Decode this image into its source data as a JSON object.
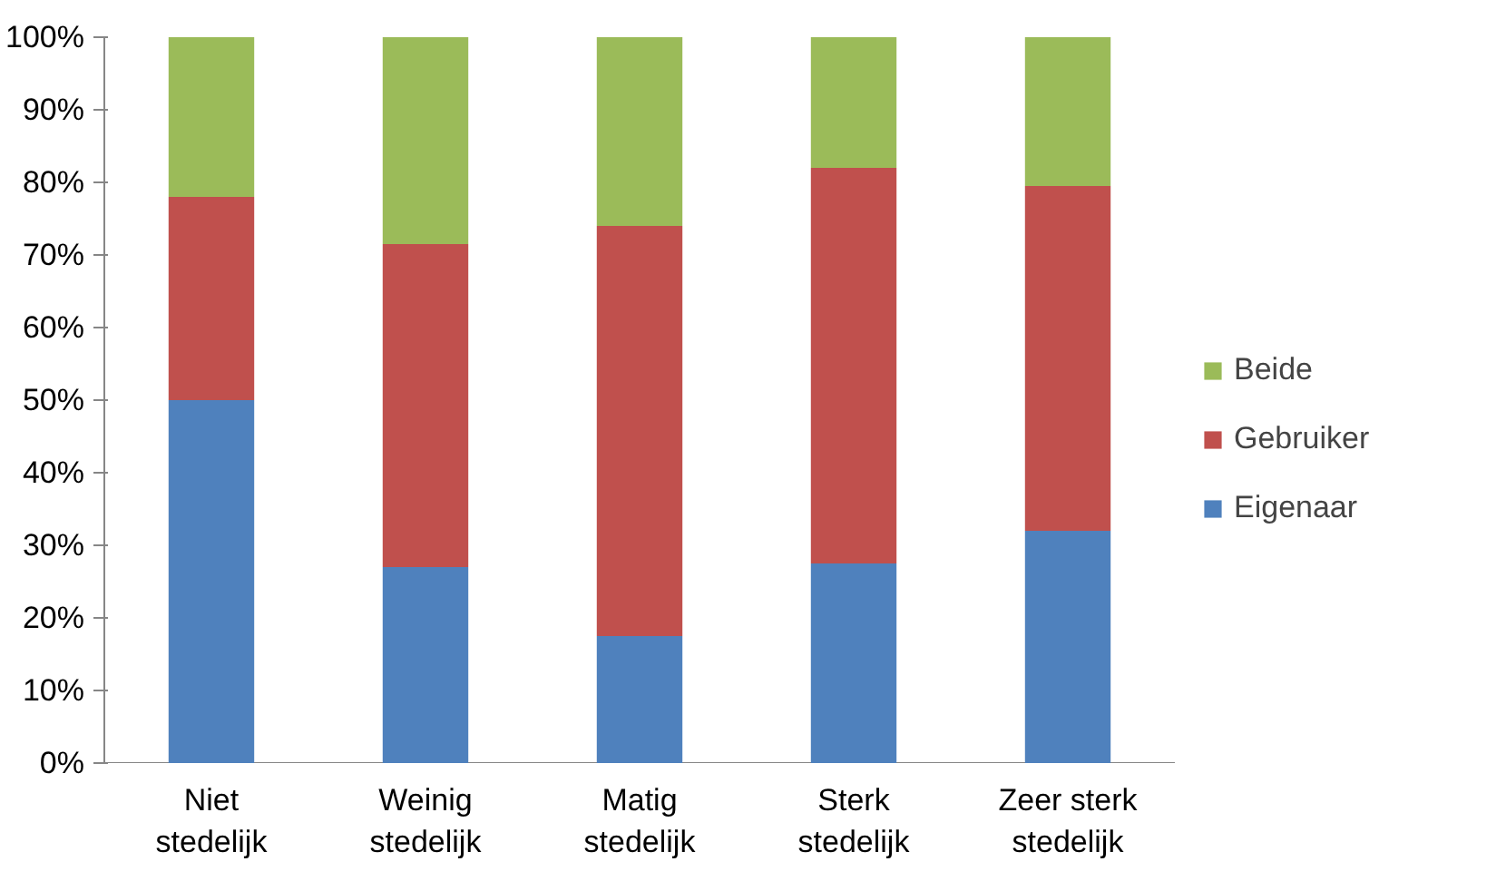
{
  "chart_data": {
    "type": "bar",
    "stacked": true,
    "categories": [
      "Niet stedelijk",
      "Weinig stedelijk",
      "Matig stedelijk",
      "Sterk stedelijk",
      "Zeer sterk stedelijk"
    ],
    "series": [
      {
        "name": "Eigenaar",
        "color": "#4f81bd",
        "values": [
          50,
          27,
          17.5,
          27.5,
          32
        ]
      },
      {
        "name": "Gebruiker",
        "color": "#c0504d",
        "values": [
          28,
          44.5,
          56.5,
          54.5,
          47.5
        ]
      },
      {
        "name": "Beide",
        "color": "#9bbb59",
        "values": [
          22,
          28.5,
          26,
          18,
          20.5
        ]
      }
    ],
    "ylim": [
      0,
      100
    ],
    "yticks": [
      {
        "value": 0,
        "label": "0%"
      },
      {
        "value": 10,
        "label": "10%"
      },
      {
        "value": 20,
        "label": "20%"
      },
      {
        "value": 30,
        "label": "30%"
      },
      {
        "value": 40,
        "label": "40%"
      },
      {
        "value": 50,
        "label": "50%"
      },
      {
        "value": 60,
        "label": "60%"
      },
      {
        "value": 70,
        "label": "70%"
      },
      {
        "value": 80,
        "label": "80%"
      },
      {
        "value": 90,
        "label": "90%"
      },
      {
        "value": 100,
        "label": "100%"
      }
    ],
    "grid": false,
    "legend": "right"
  }
}
